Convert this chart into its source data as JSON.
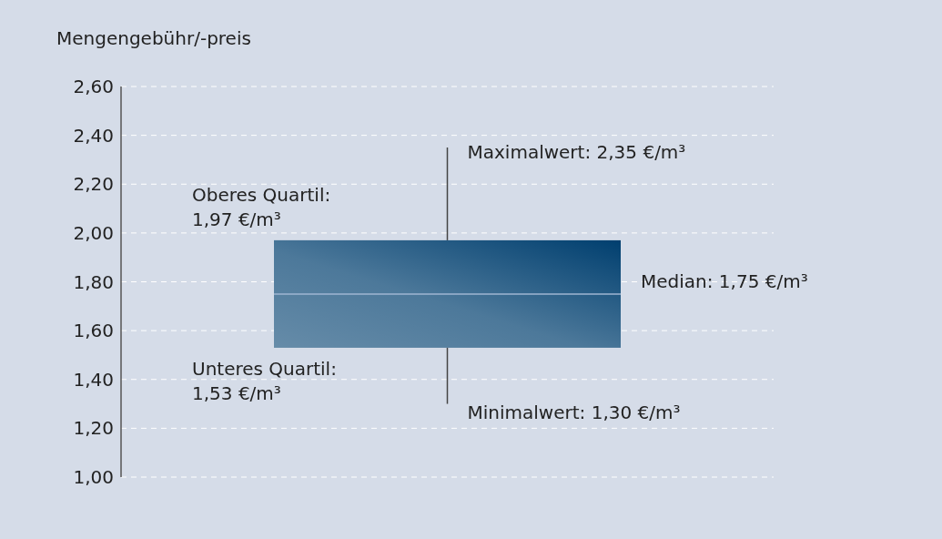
{
  "chart_data": {
    "type": "box",
    "title": "Mengengebühr/-preis",
    "categories": [
      null
    ],
    "series": [
      {
        "color": "#003f6f",
        "boxes": [
          {
            "low": 1.3,
            "q1": 1.53,
            "median": 1.75,
            "q3": 1.97,
            "high": 2.35
          }
        ]
      }
    ],
    "ylim": [
      1,
      2.6
    ],
    "yticks": [
      {
        "value": 1,
        "label": "1,00"
      },
      {
        "value": 1.2,
        "label": "1,20"
      },
      {
        "value": 1.4,
        "label": "1,40"
      },
      {
        "value": 1.6,
        "label": "1,60"
      },
      {
        "value": 1.8,
        "label": "1,80"
      },
      {
        "value": 2,
        "label": "2,00"
      },
      {
        "value": 2.2,
        "label": "2,20"
      },
      {
        "value": 2.4,
        "label": "2,40"
      },
      {
        "value": 2.6,
        "label": "2,60"
      }
    ],
    "grid": "y",
    "tick_labels": "y",
    "annotations": [
      "Maximalwert: 2,35 €/m³",
      "Oberes Quartil:\n1,97 €/m³",
      "Median: 1,75 €/m³",
      "Unteres Quartil:\n1,53 €/m³",
      "Minimalwert: 1,30 €/m³"
    ]
  }
}
